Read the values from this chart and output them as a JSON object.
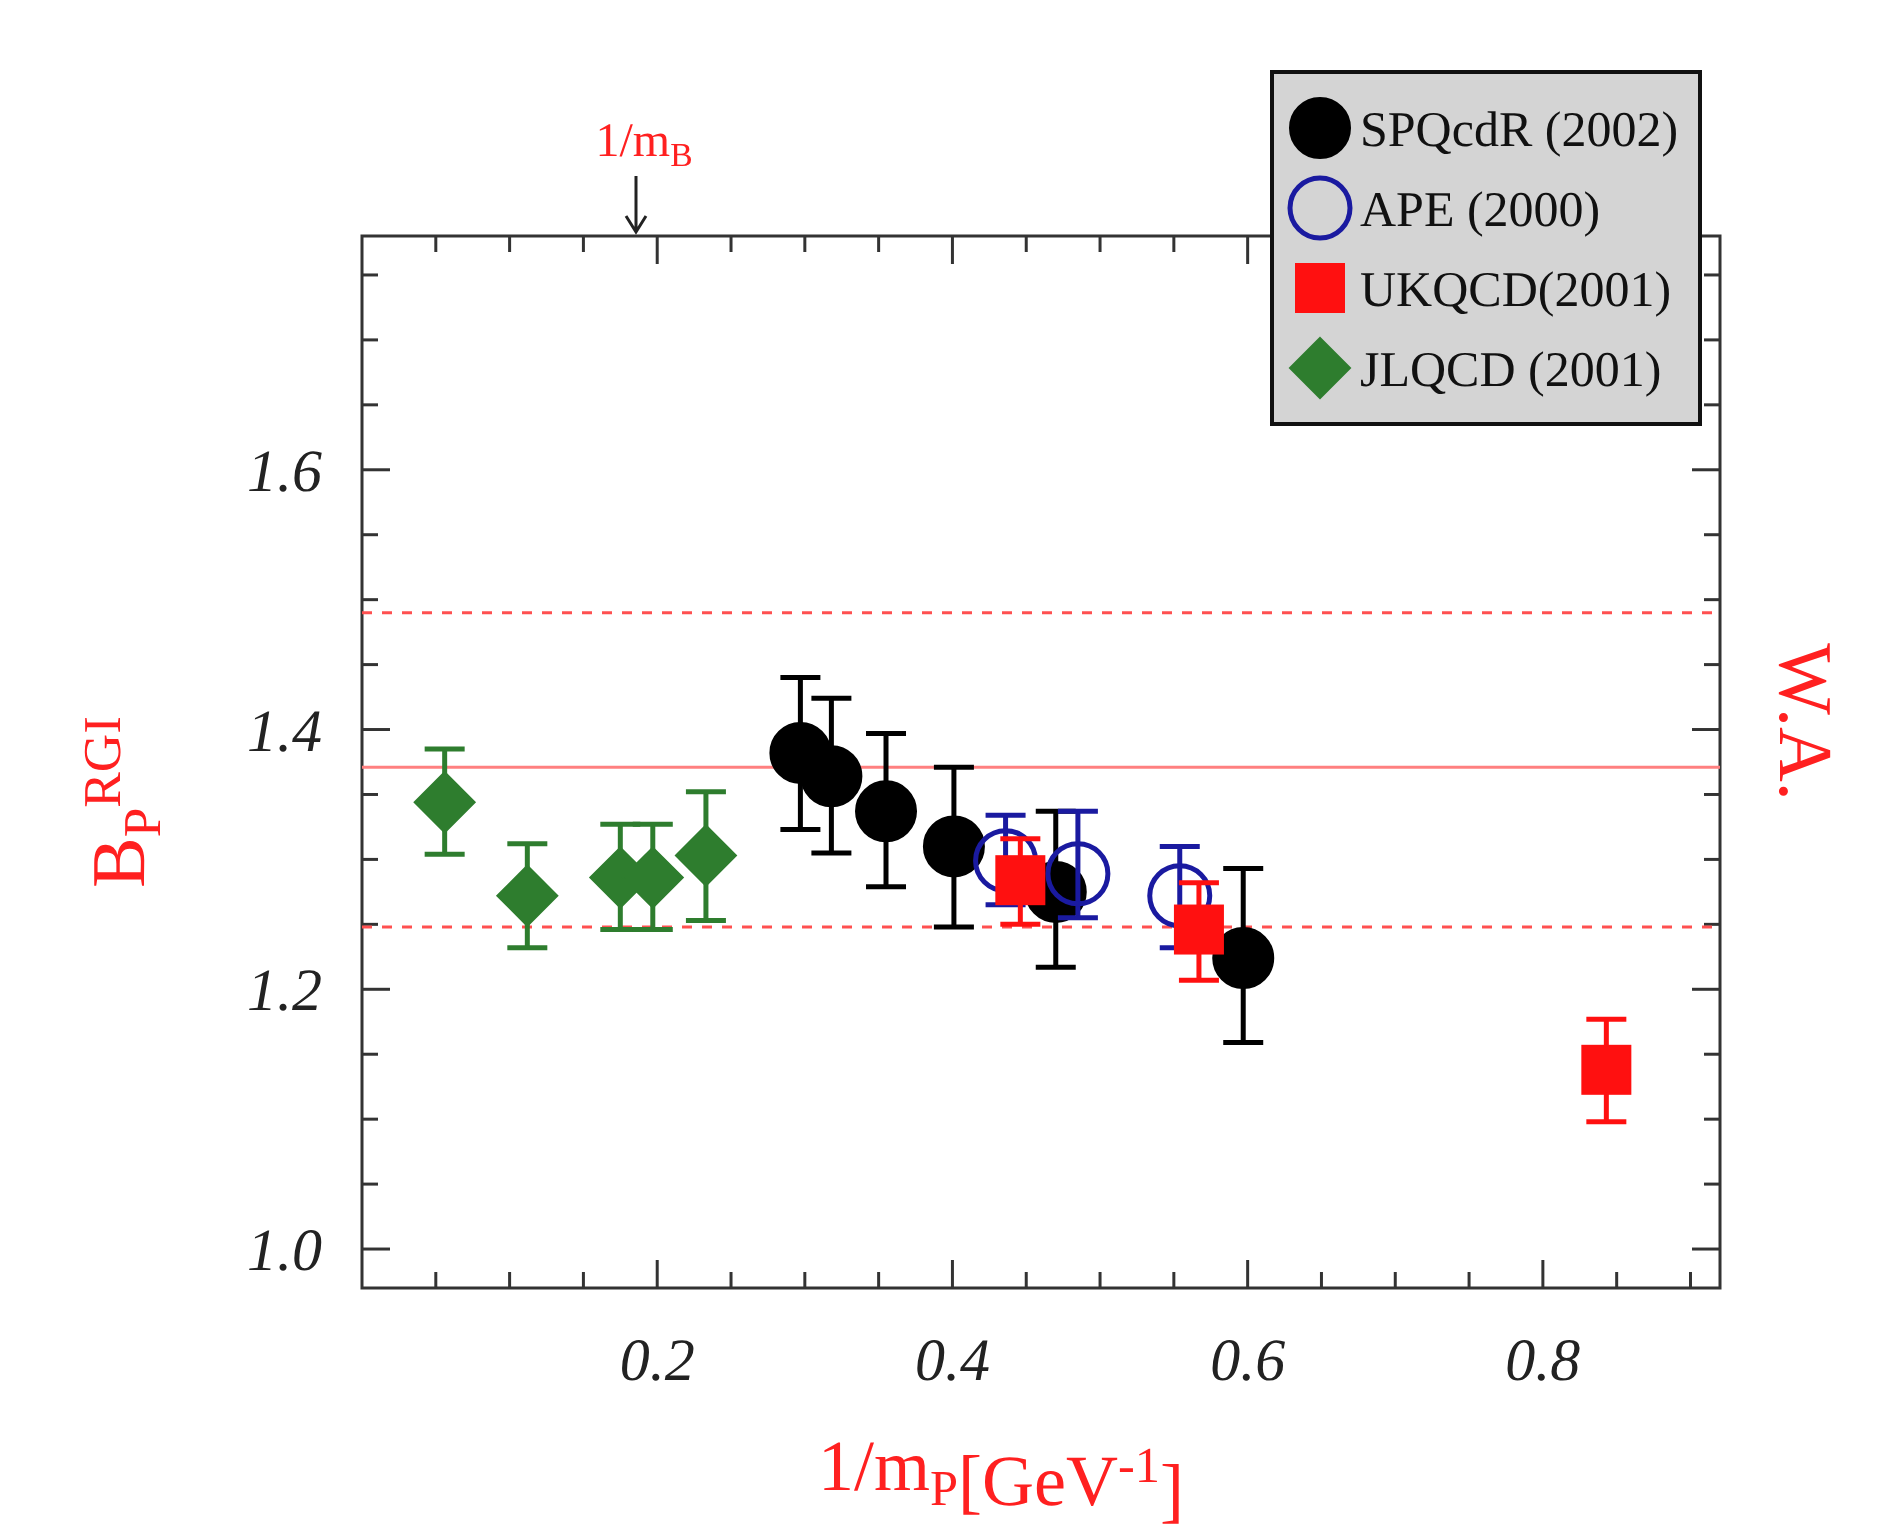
{
  "chart_data": {
    "type": "scatter",
    "xlabel": "1/m$_{P}$[GeV$^{-1}$]",
    "ylabel": "B$_{P}$$^{RGI}$",
    "y2label": "W.A.",
    "xlim": [
      0,
      0.92
    ],
    "ylim": [
      0.97,
      1.78
    ],
    "xticks": [
      {
        "value": 0.05,
        "label": null
      },
      {
        "value": 0.1,
        "label": null
      },
      {
        "value": 0.15,
        "label": null
      },
      0.2,
      {
        "value": 0.25,
        "label": null
      },
      {
        "value": 0.3,
        "label": null
      },
      {
        "value": 0.35,
        "label": null
      },
      0.4,
      {
        "value": 0.45,
        "label": null
      },
      {
        "value": 0.5,
        "label": null
      },
      {
        "value": 0.55,
        "label": null
      },
      0.6,
      {
        "value": 0.65,
        "label": null
      },
      {
        "value": 0.7,
        "label": null
      },
      {
        "value": 0.75,
        "label": null
      },
      0.8,
      {
        "value": 0.85,
        "label": null
      },
      {
        "value": 0.9,
        "label": null
      }
    ],
    "yticks": [
      {
        "value": 1,
        "label": "1.0"
      },
      {
        "value": 1.05,
        "label": null
      },
      {
        "value": 1.1,
        "label": null
      },
      {
        "value": 1.15,
        "label": null
      },
      1.2,
      {
        "value": 1.25,
        "label": null
      },
      {
        "value": 1.3,
        "label": null
      },
      {
        "value": 1.35,
        "label": null
      },
      1.4,
      {
        "value": 1.45,
        "label": null
      },
      {
        "value": 1.5,
        "label": null
      },
      {
        "value": 1.55,
        "label": null
      },
      1.6,
      {
        "value": 1.65,
        "label": null
      },
      {
        "value": 1.7,
        "label": null
      },
      {
        "value": 1.75,
        "label": null
      }
    ],
    "legend": "top right",
    "grid": false,
    "series": [
      {
        "name": "SPQcdR (2002)",
        "color": "#000000",
        "marker": "circle",
        "x": [
          0.297,
          0.318,
          0.355,
          0.401,
          0.47,
          0.597
        ],
        "values": [
          1.382,
          1.364,
          1.337,
          1.31,
          1.275,
          1.224
        ],
        "errors": [
          [
            1.323,
            1.44
          ],
          [
            1.305,
            1.424
          ],
          [
            1.279,
            1.397
          ],
          [
            1.248,
            1.371
          ],
          [
            1.217,
            1.337
          ],
          [
            1.159,
            1.293
          ]
        ]
      },
      {
        "name": "APE (2000)",
        "color": "#1a1aa0",
        "marker": "circle-open",
        "x": [
          0.436,
          0.485,
          0.554
        ],
        "values": [
          1.299,
          1.289,
          1.272
        ],
        "errors": [
          [
            1.265,
            1.334
          ],
          [
            1.255,
            1.337
          ],
          [
            1.232,
            1.31
          ]
        ]
      },
      {
        "name": "UKQCD(2001)",
        "color": "#ff1010",
        "marker": "square",
        "x": [
          0.446,
          0.567,
          0.843
        ],
        "values": [
          1.284,
          1.246,
          1.138
        ],
        "errors": [
          [
            1.25,
            1.316
          ],
          [
            1.207,
            1.282
          ],
          [
            1.098,
            1.177
          ]
        ]
      },
      {
        "name": "JLQCD (2001)",
        "color": "#2e7d2e",
        "marker": "diamond",
        "x": [
          0.056,
          0.112,
          0.175,
          0.197,
          0.233
        ],
        "values": [
          1.344,
          1.272,
          1.286,
          1.286,
          1.303
        ],
        "errors": [
          [
            1.304,
            1.385
          ],
          [
            1.232,
            1.312
          ],
          [
            1.246,
            1.327
          ],
          [
            1.246,
            1.327
          ],
          [
            1.253,
            1.352
          ]
        ]
      }
    ],
    "ref_lines": [
      {
        "axis": "y",
        "value": 1.371,
        "color": "#ff8080",
        "line_style": "solid"
      },
      {
        "axis": "y",
        "value": 1.49,
        "color": "#ff5050",
        "line_style": "dashed"
      },
      {
        "axis": "y",
        "value": 1.248,
        "color": "#ff5050",
        "line_style": "dashed"
      }
    ],
    "annotations": [
      "1/m$_{B}$"
    ]
  }
}
